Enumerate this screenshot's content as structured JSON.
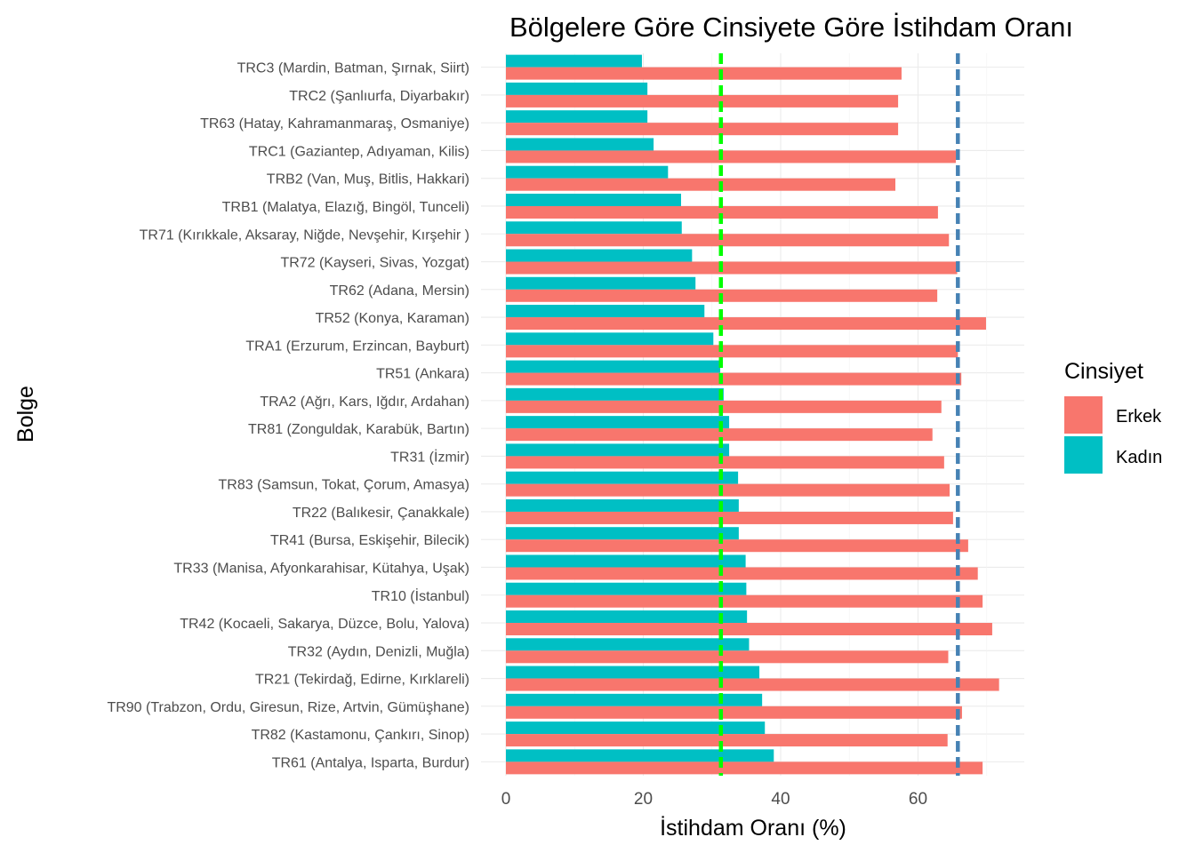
{
  "chart_data": {
    "type": "bar",
    "orientation": "horizontal",
    "title": "Bölgelere Göre Cinsiyete Göre İstihdam Oranı",
    "xlabel": "İstihdam Oranı (%)",
    "ylabel": "Bolge",
    "xlim": [
      0,
      75
    ],
    "xticks": [
      0,
      20,
      40,
      60
    ],
    "grid": true,
    "legend": {
      "title": "Cinsiyet",
      "position": "right",
      "entries": [
        {
          "label": "Erkek",
          "color": "#F8766D"
        },
        {
          "label": "Kadın",
          "color": "#00BFC4"
        }
      ]
    },
    "categories": [
      "TRC3 (Mardin, Batman, Şırnak, Siirt)",
      "TRC2 (Şanlıurfa, Diyarbakır)",
      "TR63 (Hatay, Kahramanmaraş, Osmaniye)",
      "TRC1 (Gaziantep, Adıyaman, Kilis)",
      "TRB2 (Van, Muş, Bitlis, Hakkari)",
      "TRB1 (Malatya, Elazığ, Bingöl, Tunceli)",
      "TR71 (Kırıkkale, Aksaray, Niğde, Nevşehir, Kırşehir )",
      "TR72 (Kayseri, Sivas, Yozgat)",
      "TR62 (Adana, Mersin)",
      "TR52 (Konya, Karaman)",
      "TRA1 (Erzurum, Erzincan, Bayburt)",
      "TR51 (Ankara)",
      "TRA2 (Ağrı, Kars, Iğdır, Ardahan)",
      "TR81 (Zonguldak, Karabük, Bartın)",
      "TR31 (İzmir)",
      "TR83 (Samsun, Tokat, Çorum, Amasya)",
      "TR22 (Balıkesir, Çanakkale)",
      "TR41 (Bursa, Eskişehir, Bilecik)",
      "TR33 (Manisa, Afyonkarahisar, Kütahya, Uşak)",
      "TR10 (İstanbul)",
      "TR42 (Kocaeli, Sakarya, Düzce, Bolu, Yalova)",
      "TR32 (Aydın, Denizli, Muğla)",
      "TR21 (Tekirdağ, Edirne, Kırklareli)",
      "TR90 (Trabzon, Ordu, Giresun, Rize, Artvin, Gümüşhane)",
      "TR82 (Kastamonu, Çankırı, Sinop)",
      "TR61 (Antalya, Isparta, Burdur)"
    ],
    "series": [
      {
        "name": "Kadın",
        "color": "#00BFC4",
        "values": [
          19.8,
          20.6,
          20.6,
          21.5,
          23.6,
          25.5,
          25.6,
          27.1,
          27.6,
          28.9,
          30.2,
          31.2,
          31.7,
          32.5,
          32.5,
          33.8,
          33.9,
          33.9,
          34.9,
          35.0,
          35.1,
          35.4,
          36.9,
          37.3,
          37.7,
          39.0
        ]
      },
      {
        "name": "Erkek",
        "color": "#F8766D",
        "values": [
          57.6,
          57.1,
          57.1,
          65.5,
          56.7,
          62.9,
          64.5,
          65.7,
          62.8,
          69.9,
          65.8,
          66.3,
          63.4,
          62.1,
          63.8,
          64.6,
          65.1,
          67.3,
          68.7,
          69.4,
          70.8,
          64.4,
          71.8,
          66.4,
          64.3,
          69.4
        ]
      }
    ],
    "reference_lines": [
      {
        "value": 31.3,
        "color": "#00FF00",
        "style": "dashed"
      },
      {
        "value": 65.8,
        "color": "#4682B4",
        "style": "dashed"
      }
    ]
  }
}
